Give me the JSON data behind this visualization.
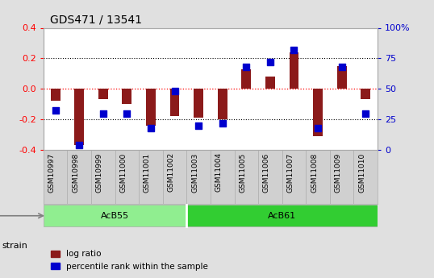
{
  "title": "GDS471 / 13541",
  "samples": [
    "GSM10997",
    "GSM10998",
    "GSM10999",
    "GSM11000",
    "GSM11001",
    "GSM11002",
    "GSM11003",
    "GSM11004",
    "GSM11005",
    "GSM11006",
    "GSM11007",
    "GSM11008",
    "GSM11009",
    "GSM11010"
  ],
  "log_ratio": [
    -0.08,
    -0.37,
    -0.07,
    -0.1,
    -0.24,
    -0.18,
    -0.19,
    -0.2,
    0.13,
    0.08,
    0.24,
    -0.31,
    0.15,
    -0.07
  ],
  "percentile": [
    32,
    4,
    30,
    30,
    18,
    48,
    20,
    22,
    68,
    72,
    82,
    18,
    68,
    30
  ],
  "groups": [
    {
      "label": "AcB55",
      "start": 0,
      "end": 5,
      "color": "#90EE90"
    },
    {
      "label": "AcB61",
      "start": 6,
      "end": 13,
      "color": "#32CD32"
    }
  ],
  "ylim": [
    -0.4,
    0.4
  ],
  "y2lim": [
    0,
    100
  ],
  "yticks": [
    -0.4,
    -0.2,
    0.0,
    0.2,
    0.4
  ],
  "y2ticks": [
    0,
    25,
    50,
    75,
    100
  ],
  "y2ticklabels": [
    "0",
    "25",
    "50",
    "75",
    "100%"
  ],
  "hlines": [
    -0.2,
    0.0,
    0.2
  ],
  "bar_color": "#8B1A1A",
  "dot_color": "#0000CD",
  "dot_size": 28,
  "background_color": "#e0e0e0",
  "plot_bg_color": "#ffffff",
  "strain_label": "strain",
  "legend_log_ratio": "log ratio",
  "legend_percentile": "percentile rank within the sample"
}
